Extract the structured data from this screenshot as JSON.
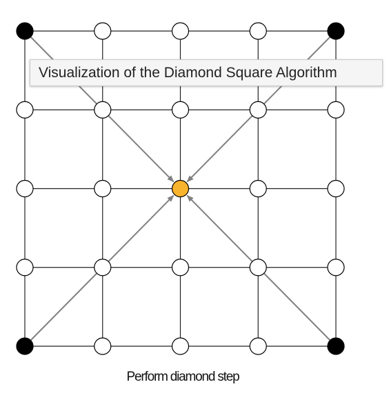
{
  "tooltip": {
    "text": "Visualization of the Diamond Square Algorithm"
  },
  "caption": "Perform diamond step",
  "grid": {
    "size": 5,
    "corner_color": "#000000",
    "target_color": "#f9b42d",
    "empty_color": "#ffffff",
    "line_color": "#222222",
    "arrow_color": "#808080",
    "corners": [
      [
        0,
        0
      ],
      [
        0,
        4
      ],
      [
        4,
        0
      ],
      [
        4,
        4
      ]
    ],
    "target": [
      2,
      2
    ],
    "arrows": [
      {
        "from": [
          0,
          0
        ],
        "to": [
          2,
          2
        ]
      },
      {
        "from": [
          0,
          4
        ],
        "to": [
          2,
          2
        ]
      },
      {
        "from": [
          4,
          0
        ],
        "to": [
          2,
          2
        ]
      },
      {
        "from": [
          4,
          4
        ],
        "to": [
          2,
          2
        ]
      }
    ]
  }
}
